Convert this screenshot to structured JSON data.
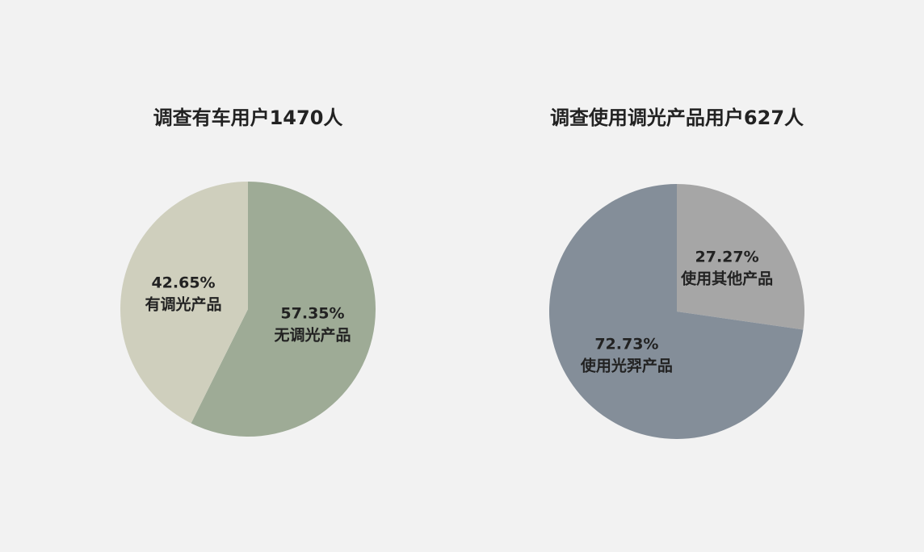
{
  "chart_data": [
    {
      "type": "pie",
      "title": "调查有车用户1470人",
      "categories": [
        "无调光产品",
        "有调光产品"
      ],
      "values": [
        57.35,
        42.65
      ],
      "value_labels": [
        "57.35%",
        "42.65%"
      ],
      "colors": [
        "#9eab96",
        "#cfcfbd"
      ]
    },
    {
      "type": "pie",
      "title": "调查使用调光产品用户627人",
      "categories": [
        "使用其他产品",
        "使用光羿产品"
      ],
      "values": [
        27.27,
        72.73
      ],
      "value_labels": [
        "27.27%",
        "72.73%"
      ],
      "colors": [
        "#a6a6a6",
        "#848e99"
      ]
    }
  ]
}
